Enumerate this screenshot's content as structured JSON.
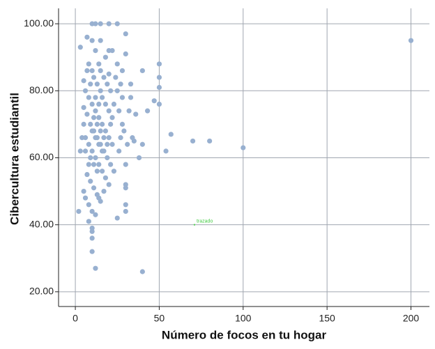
{
  "chart_data": {
    "type": "scatter",
    "x_label": "Número de focos en tu hogar",
    "y_label": "Cibercultura estudiantil",
    "annotation": {
      "text": "trazado",
      "x": 71,
      "y": 40
    },
    "color": "#98b0d0",
    "grid": true,
    "xlim": [
      -10,
      211
    ],
    "ylim": [
      15.6,
      104.6
    ],
    "xticks": [
      0,
      50,
      100,
      150,
      200
    ],
    "yticks": [
      {
        "value": 20,
        "label": "20.00"
      },
      {
        "value": 40,
        "label": "40.00"
      },
      {
        "value": 60,
        "label": "60.00"
      },
      {
        "value": 80,
        "label": "80.00"
      },
      {
        "value": 100,
        "label": "100.00"
      }
    ],
    "x": [
      200,
      100,
      80,
      70,
      57,
      54,
      50,
      50,
      50,
      50,
      47,
      43,
      40,
      40,
      40,
      38,
      35,
      30,
      30,
      30,
      30,
      30,
      30,
      30,
      25,
      12,
      10,
      10,
      10,
      10,
      8,
      10,
      12,
      15,
      20,
      25,
      2,
      3,
      3,
      7,
      22,
      20,
      15,
      10,
      12,
      8,
      10,
      15,
      20,
      25,
      5,
      6,
      8,
      10,
      12,
      14,
      16,
      18,
      20,
      22,
      5,
      7,
      9,
      11,
      13,
      15,
      17,
      19,
      21,
      23,
      6,
      8,
      10,
      12,
      14,
      16,
      18,
      20,
      7,
      9,
      11,
      13,
      15,
      17,
      6,
      8,
      10,
      12,
      14,
      5,
      27,
      28,
      26,
      28,
      27,
      26,
      25,
      24,
      23,
      22,
      21,
      19,
      17,
      15,
      13,
      11,
      9,
      7,
      5,
      4,
      33,
      32,
      33,
      34,
      36,
      31,
      29,
      28,
      18,
      14,
      12,
      14,
      16,
      18,
      20,
      11,
      13,
      15,
      17,
      19,
      10,
      12,
      14,
      16,
      9,
      11,
      13,
      8,
      6,
      21
    ],
    "values": [
      95,
      63,
      65,
      65,
      67,
      62,
      88,
      84,
      81,
      76,
      77,
      74,
      86,
      64,
      26,
      60,
      65,
      97,
      91,
      58,
      52,
      51,
      46,
      44,
      42,
      27,
      32,
      36,
      38,
      39,
      41,
      100,
      100,
      100,
      100,
      100,
      44,
      62,
      93,
      96,
      92,
      92,
      95,
      95,
      92,
      88,
      86,
      86,
      85,
      80,
      83,
      80,
      78,
      76,
      74,
      72,
      70,
      68,
      66,
      64,
      75,
      73,
      70,
      68,
      66,
      64,
      62,
      60,
      58,
      56,
      66,
      64,
      62,
      60,
      58,
      56,
      54,
      52,
      55,
      53,
      51,
      49,
      47,
      50,
      48,
      46,
      44,
      43,
      48,
      50,
      82,
      78,
      74,
      70,
      66,
      62,
      88,
      84,
      76,
      72,
      80,
      82,
      84,
      80,
      82,
      84,
      82,
      86,
      70,
      66,
      78,
      74,
      82,
      66,
      73,
      64,
      68,
      86,
      90,
      88,
      78,
      76,
      78,
      76,
      74,
      72,
      70,
      68,
      66,
      64,
      68,
      66,
      64,
      62,
      60,
      58,
      56,
      58,
      62,
      70
    ]
  }
}
